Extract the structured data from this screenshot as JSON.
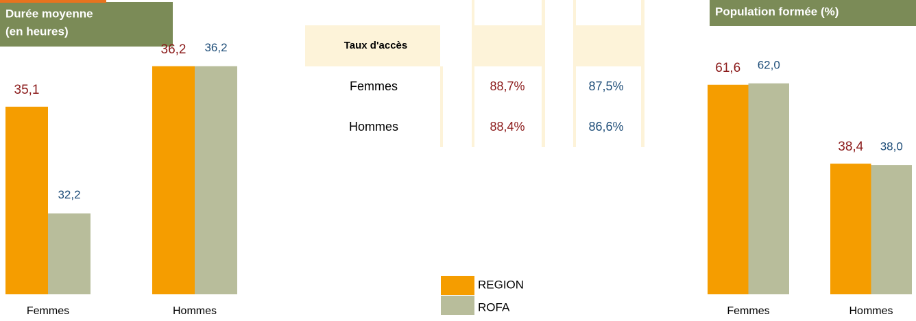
{
  "chart_data": [
    {
      "type": "bar",
      "title": [
        "Durée moyenne",
        "(en heures)"
      ],
      "categories": [
        "Femmes",
        "Hommes"
      ],
      "series": [
        {
          "name": "REGION",
          "color": "#f59d00",
          "label_color": "#8b1a1a",
          "values": [
            35.1,
            36.2
          ],
          "value_labels": [
            "35,1",
            "36,2"
          ]
        },
        {
          "name": "ROFA",
          "color": "#b8bd9b",
          "label_color": "#1f4e79",
          "values": [
            32.2,
            36.2
          ],
          "value_labels": [
            "32,2",
            "36,2"
          ]
        }
      ],
      "ylim": [
        30,
        38
      ]
    },
    {
      "type": "bar",
      "title": [
        "Population formée (%)"
      ],
      "categories": [
        "Femmes",
        "Hommes"
      ],
      "series": [
        {
          "name": "REGION",
          "color": "#f59d00",
          "label_color": "#8b1a1a",
          "values": [
            61.6,
            38.4
          ],
          "value_labels": [
            "61,6",
            "38,4"
          ]
        },
        {
          "name": "ROFA",
          "color": "#b8bd9b",
          "label_color": "#1f4e79",
          "values": [
            62.0,
            38.0
          ],
          "value_labels": [
            "62,0",
            "38,0"
          ]
        }
      ],
      "ylim": [
        0,
        86.5
      ]
    }
  ],
  "table": {
    "header": "Taux d'accès",
    "rows": [
      [
        "Femmes",
        "88,7%",
        "87,5%"
      ],
      [
        "Hommes",
        "88,4%",
        "86,6%"
      ]
    ]
  }
}
